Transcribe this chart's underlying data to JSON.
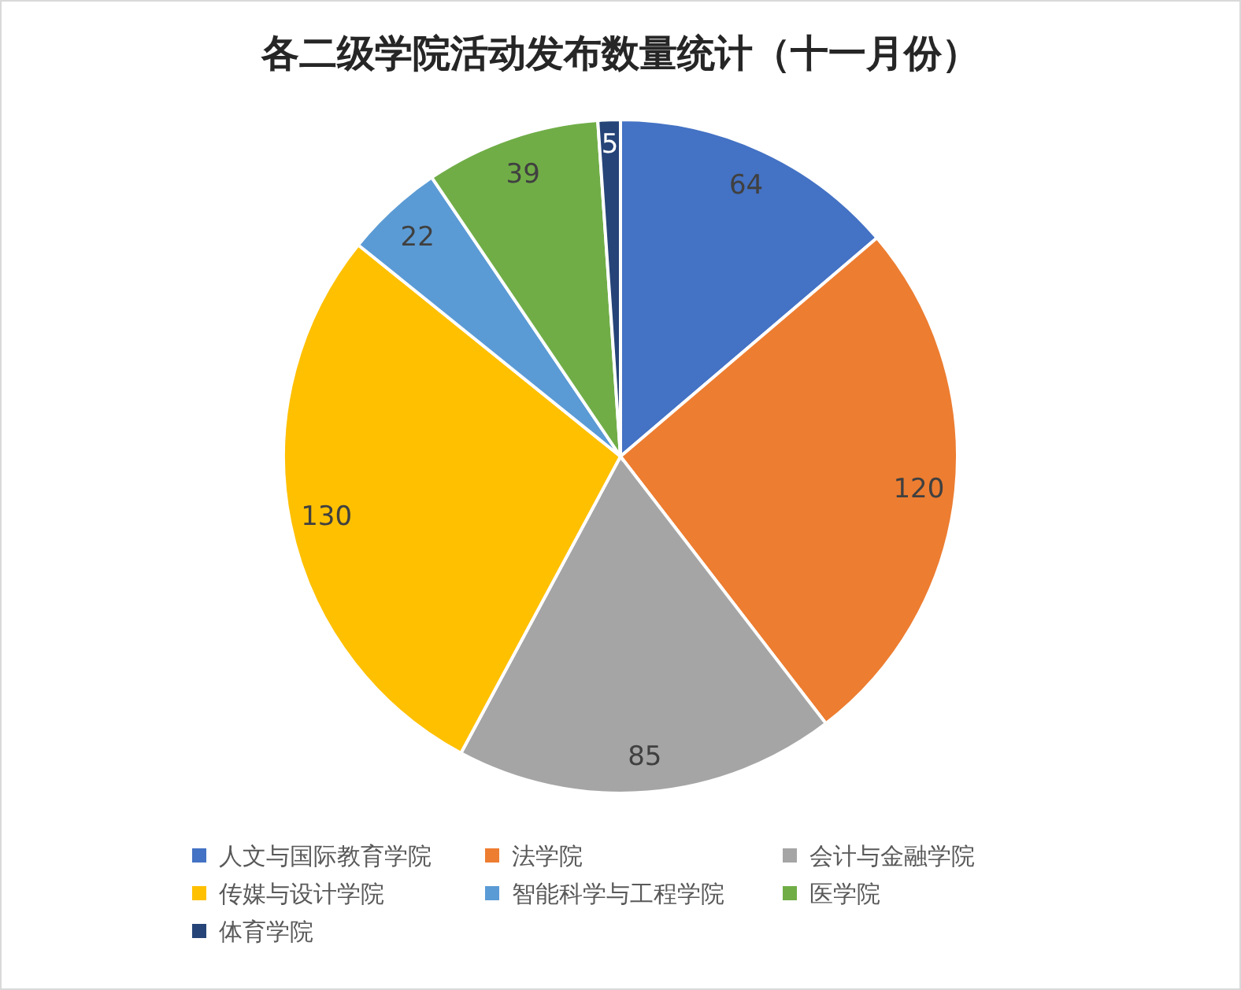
{
  "chart_data": {
    "type": "pie",
    "title": "各二级学院活动发布数量统计（十一月份）",
    "categories": [
      "人文与国际教育学院",
      "法学院",
      "会计与金融学院",
      "传媒与设计学院",
      "智能科学与工程学院",
      "医学院",
      "体育学院"
    ],
    "values": [
      64,
      120,
      85,
      130,
      22,
      39,
      5
    ],
    "colors": [
      "#4472c4",
      "#ed7d31",
      "#a5a5a5",
      "#ffc000",
      "#5b9bd5",
      "#70ad47",
      "#264478"
    ],
    "data_labels": true,
    "legend": "bottom"
  }
}
